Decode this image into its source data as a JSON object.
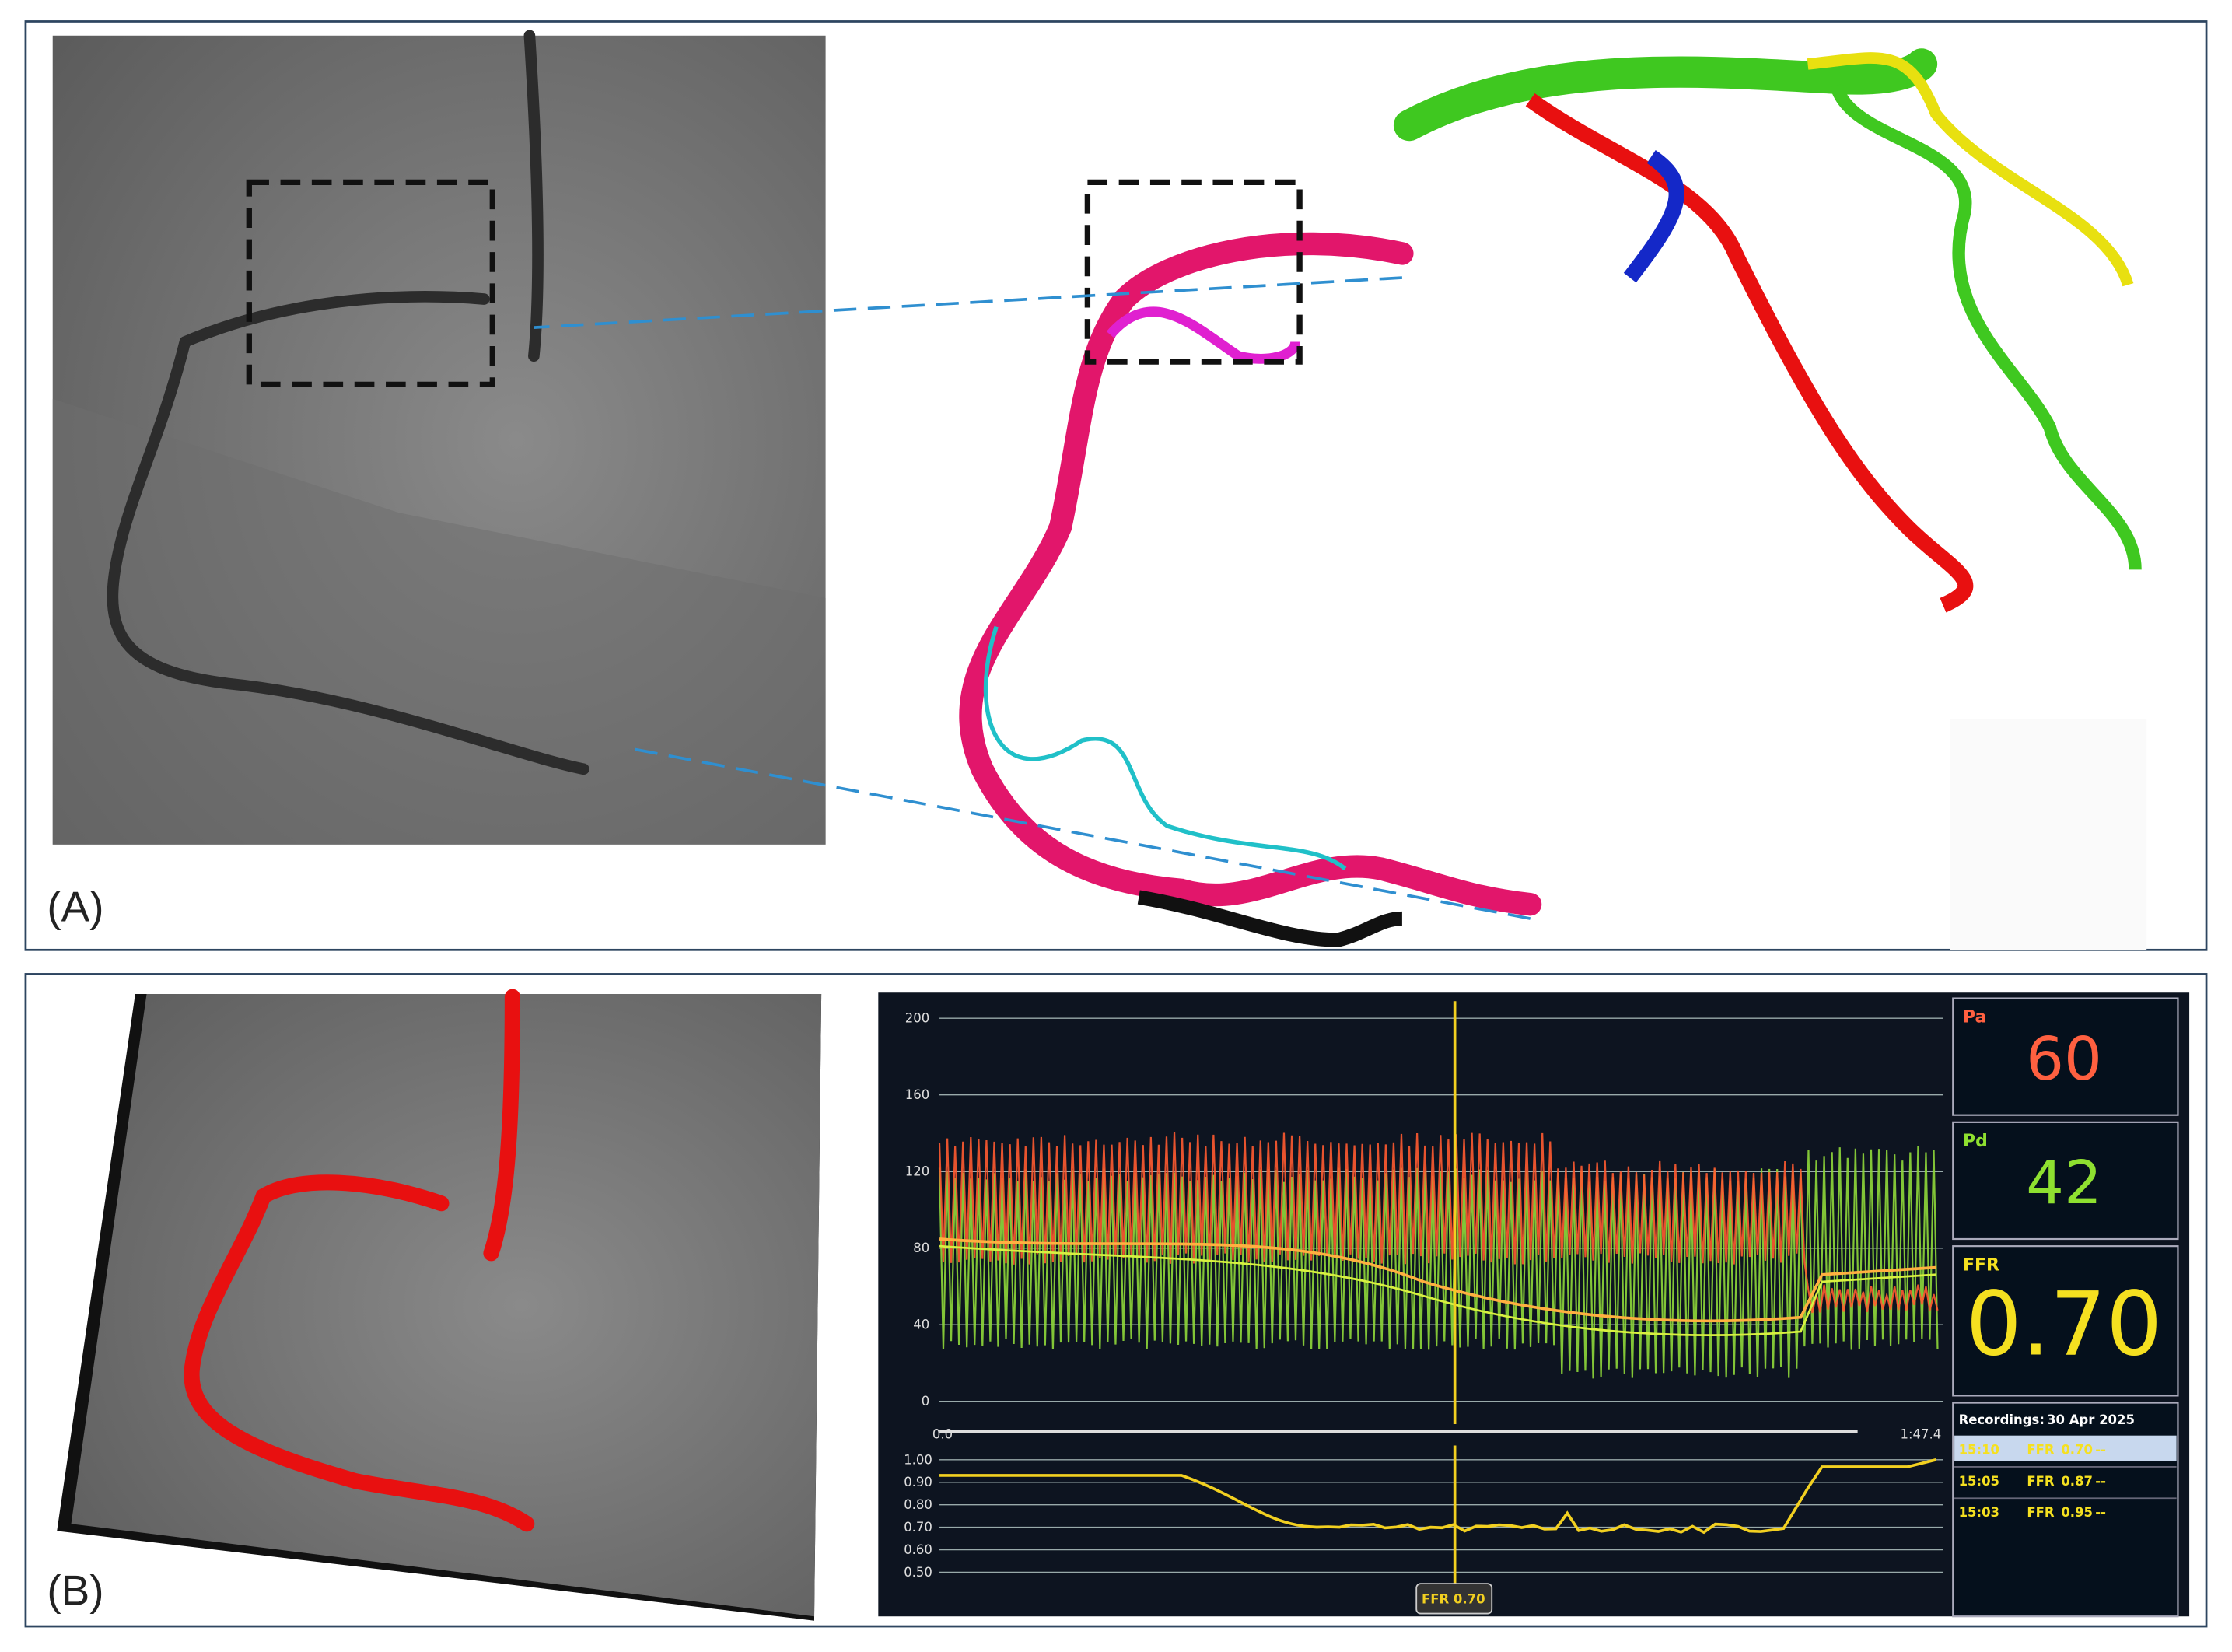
{
  "panel_a": {
    "label": "(A)"
  },
  "panel_b": {
    "label": "(B)",
    "monitor": {
      "pressure_axis": [
        200,
        160,
        120,
        80,
        40,
        0
      ],
      "time_start": "0.0",
      "time_end": "1:47.4",
      "ffr_axis": [
        "1.00",
        "0.90",
        "0.80",
        "0.70",
        "0.60",
        "0.50"
      ],
      "cursor_label": "FFR 0.70",
      "readouts": [
        {
          "name": "Pa",
          "value": 60
        },
        {
          "name": "Pd",
          "value": 42
        },
        {
          "name": "FFR",
          "value": "0.70"
        }
      ],
      "recordings": {
        "title": "Recordings:",
        "date": "30 Apr 2025",
        "rows": [
          [
            "15:10",
            "FFR",
            "0.70",
            "--"
          ],
          [
            "15:05",
            "FFR",
            "0.87",
            "--"
          ],
          [
            "15:03",
            "FFR",
            "0.95",
            "--"
          ]
        ]
      }
    }
  }
}
